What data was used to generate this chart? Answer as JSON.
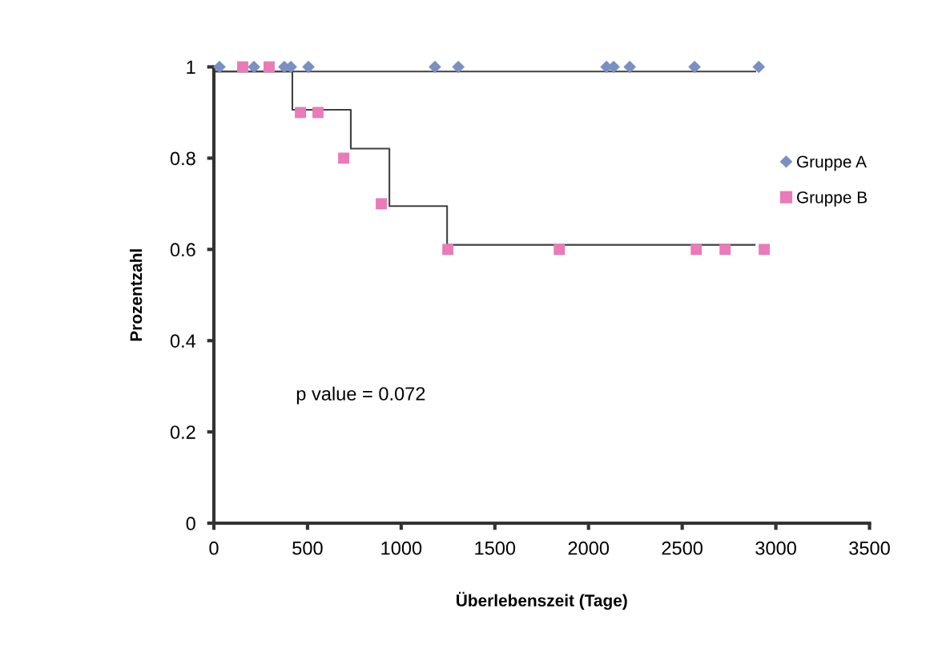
{
  "chart_data": {
    "type": "scatter",
    "xlabel": "Überlebenszeit (Tage)",
    "ylabel": "Prozentzahl",
    "xlim": [
      0,
      3500
    ],
    "xticks": [
      0,
      500,
      1000,
      1500,
      2000,
      2500,
      3000,
      3500
    ],
    "ylim": [
      0,
      1
    ],
    "yticks": [
      0,
      0.2,
      0.4,
      0.6,
      0.8,
      1
    ],
    "grid": false,
    "legend": "right",
    "annotations": [
      "p value = 0.072"
    ],
    "series": [
      {
        "name": "Gruppe A",
        "marker": "diamond",
        "color": "#7b8fc0",
        "x": [
          30,
          214,
          376,
          411,
          505,
          1180,
          1305,
          2096,
          2134,
          2220,
          2566,
          2909
        ],
        "values": [
          1,
          1,
          1,
          1,
          1,
          1,
          1,
          1,
          1,
          1,
          1,
          1
        ]
      },
      {
        "name": "Gruppe B",
        "marker": "square",
        "color": "#e87cb8",
        "x": [
          154,
          295,
          462,
          556,
          693,
          894,
          1249,
          1844,
          2575,
          2729,
          2938
        ],
        "values": [
          1,
          1,
          0.9,
          0.9,
          0.8,
          0.7,
          0.6,
          0.6,
          0.6,
          0.6,
          0.6
        ]
      },
      {
        "type": "step",
        "color": "#404040",
        "x": [
          0,
          2890
        ],
        "values": [
          0.99,
          0.99
        ]
      },
      {
        "type": "step",
        "color": "#404040",
        "x": [
          0,
          419,
          731,
          937,
          1245,
          2887
        ],
        "values": [
          0.99,
          0.906,
          0.821,
          0.695,
          0.61,
          0.61
        ]
      }
    ]
  }
}
